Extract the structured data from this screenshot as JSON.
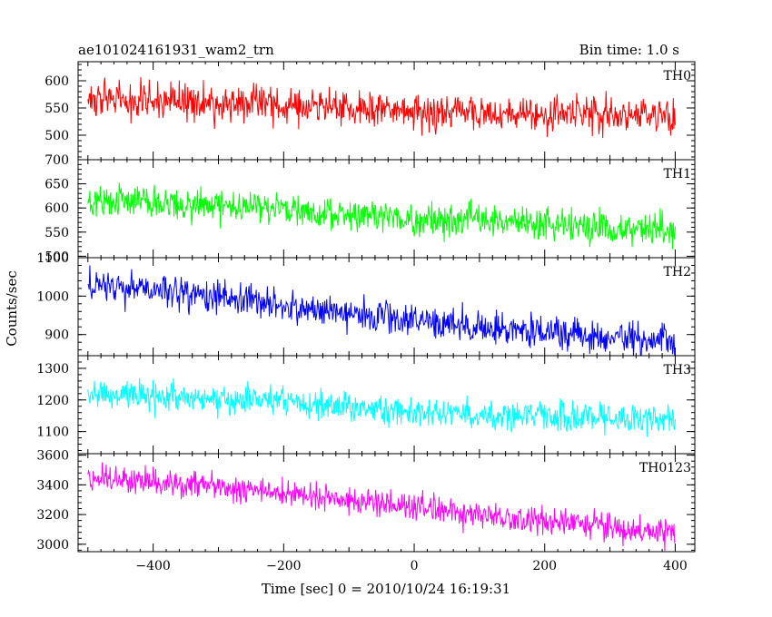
{
  "chart_data": {
    "type": "line",
    "title_left": "ae101024161931_wam2_trn",
    "title_right": "Bin time: 1.0 s",
    "xlabel": "Time [sec] 0 = 2010/10/24 16:19:31",
    "ylabel": "Counts/sec",
    "xlim": [
      -515,
      430
    ],
    "x_ticks": [
      -400,
      -200,
      0,
      200,
      400
    ],
    "x_tick_labels": [
      "−400",
      "−200",
      "0",
      "200",
      "400"
    ],
    "x_range": [
      -500,
      400
    ],
    "bin_time": 1.0,
    "grid": false,
    "panels": [
      {
        "label": "TH0",
        "color": "#ff0000",
        "ylim": [
          455,
          635
        ],
        "y_ticks": [
          500,
          550,
          600
        ],
        "trend": [
          [
            -500,
            565
          ],
          [
            -300,
            560
          ],
          [
            0,
            545
          ],
          [
            400,
            535
          ]
        ],
        "noise": 23
      },
      {
        "label": "TH1",
        "color": "#00ff00",
        "ylim": [
          497,
          700
        ],
        "y_ticks": [
          500,
          550,
          600,
          650,
          700
        ],
        "trend": [
          [
            -500,
            615
          ],
          [
            -200,
            597
          ],
          [
            0,
            578
          ],
          [
            400,
            555
          ]
        ],
        "noise": 24
      },
      {
        "label": "TH2",
        "color": "#0000ff",
        "ylim": [
          845,
          1100
        ],
        "y_ticks": [
          900,
          1000,
          1100
        ],
        "trend": [
          [
            -500,
            1030
          ],
          [
            -300,
            1000
          ],
          [
            0,
            935
          ],
          [
            400,
            880
          ]
        ],
        "noise": 30
      },
      {
        "label": "TH3",
        "color": "#00ffff",
        "ylim": [
          1030,
          1340
        ],
        "y_ticks": [
          1100,
          1200,
          1300
        ],
        "trend": [
          [
            -500,
            1220
          ],
          [
            -200,
            1195
          ],
          [
            0,
            1160
          ],
          [
            400,
            1140
          ]
        ],
        "noise": 33
      },
      {
        "label": "TH0123",
        "color": "#ff00ff",
        "ylim": [
          2950,
          3610
        ],
        "y_ticks": [
          3000,
          3200,
          3400,
          3600
        ],
        "trend": [
          [
            -500,
            3450
          ],
          [
            -300,
            3380
          ],
          [
            0,
            3250
          ],
          [
            200,
            3150
          ],
          [
            400,
            3080
          ]
        ],
        "noise": 65
      }
    ]
  }
}
